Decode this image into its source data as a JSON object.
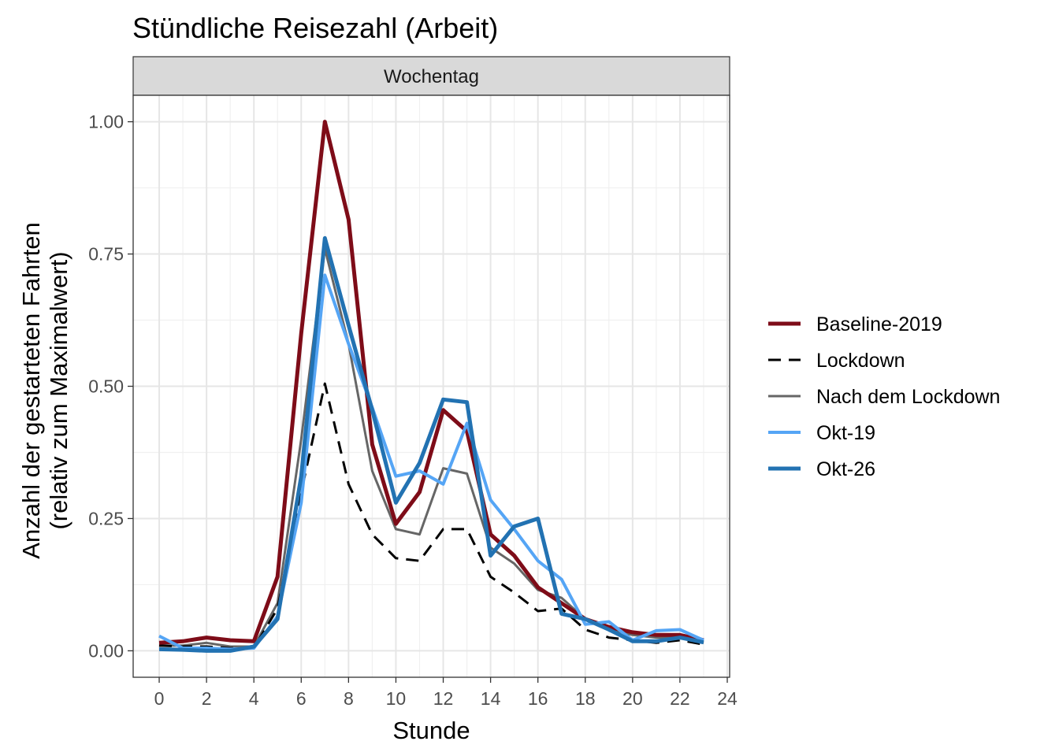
{
  "chart_data": {
    "type": "line",
    "title": "Stündliche Reisezahl (Arbeit)",
    "facet_label": "Wochentag",
    "xlabel": "Stunde",
    "ylabel_lines": [
      "Anzahl der gestarteten Fahrten",
      "(relativ zum Maximalwert)"
    ],
    "xlim": [
      -1.1,
      24.1
    ],
    "ylim": [
      -0.05,
      1.05
    ],
    "x_ticks": [
      0,
      2,
      4,
      6,
      8,
      10,
      12,
      14,
      16,
      18,
      20,
      22,
      24
    ],
    "y_ticks": [
      0.0,
      0.25,
      0.5,
      0.75,
      1.0
    ],
    "y_tick_labels": [
      "0.00",
      "0.25",
      "0.50",
      "0.75",
      "1.00"
    ],
    "grid": true,
    "legend_position": "right",
    "x": [
      0,
      1,
      2,
      3,
      4,
      5,
      6,
      7,
      8,
      9,
      10,
      11,
      12,
      13,
      14,
      15,
      16,
      17,
      18,
      19,
      20,
      21,
      22,
      23
    ],
    "series": [
      {
        "name": "Nach dem Lockdown",
        "color": "#666666",
        "dash": "solid",
        "width": 3,
        "values": [
          0.01,
          0.01,
          0.015,
          0.008,
          0.008,
          0.09,
          0.4,
          0.76,
          0.58,
          0.34,
          0.23,
          0.22,
          0.345,
          0.335,
          0.195,
          0.165,
          0.115,
          0.1,
          0.06,
          0.04,
          0.03,
          0.025,
          0.025,
          0.015
        ]
      },
      {
        "name": "Lockdown",
        "color": "#000000",
        "dash": "dashed",
        "width": 3,
        "values": [
          0.01,
          0.008,
          0.008,
          0.005,
          0.005,
          0.08,
          0.3,
          0.505,
          0.315,
          0.22,
          0.175,
          0.17,
          0.23,
          0.23,
          0.14,
          0.11,
          0.075,
          0.08,
          0.04,
          0.025,
          0.02,
          0.015,
          0.02,
          0.012
        ]
      },
      {
        "name": "Baseline-2019",
        "color": "#7e0c18",
        "dash": "solid",
        "width": 5,
        "values": [
          0.015,
          0.018,
          0.025,
          0.02,
          0.018,
          0.14,
          0.6,
          1.0,
          0.815,
          0.39,
          0.24,
          0.3,
          0.455,
          0.415,
          0.22,
          0.18,
          0.12,
          0.09,
          0.06,
          0.045,
          0.035,
          0.03,
          0.03,
          0.02
        ]
      },
      {
        "name": "Okt-19",
        "color": "#55a5f5",
        "dash": "solid",
        "width": 4,
        "values": [
          0.028,
          0.005,
          0.005,
          0.003,
          0.005,
          0.065,
          0.28,
          0.71,
          0.58,
          0.46,
          0.33,
          0.34,
          0.315,
          0.43,
          0.285,
          0.23,
          0.17,
          0.135,
          0.05,
          0.055,
          0.02,
          0.038,
          0.04,
          0.02
        ]
      },
      {
        "name": "Okt-26",
        "color": "#2272b2",
        "dash": "solid",
        "width": 5,
        "values": [
          0.003,
          0.002,
          0.0,
          0.0,
          0.008,
          0.06,
          0.33,
          0.78,
          0.615,
          0.455,
          0.28,
          0.355,
          0.475,
          0.47,
          0.18,
          0.235,
          0.25,
          0.07,
          0.06,
          0.04,
          0.018,
          0.018,
          0.025,
          0.016
        ]
      }
    ],
    "legend_order": [
      "Baseline-2019",
      "Lockdown",
      "Nach dem Lockdown",
      "Okt-19",
      "Okt-26"
    ]
  }
}
